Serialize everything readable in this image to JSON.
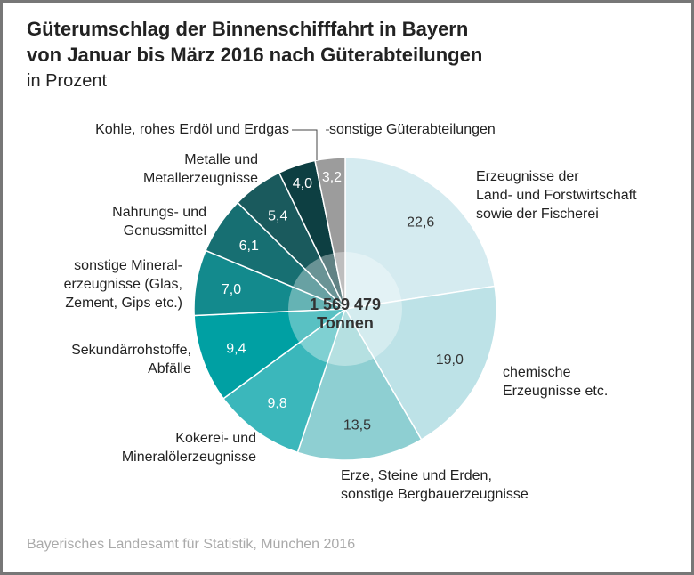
{
  "chart_data": {
    "type": "donut",
    "title": [
      "Güterumschlag der Binnenschifffahrt in Bayern",
      "von Januar bis März 2016 nach Güterabteilungen"
    ],
    "subtitle": "in Prozent",
    "center_label": [
      "1 569 479",
      "Tonnen"
    ],
    "source": "Bayerisches Landesamt für Statistik, München 2016",
    "categories": [
      [
        "Erzeugnisse der",
        "Land- und Forstwirtschaft",
        "sowie der Fischerei"
      ],
      [
        "chemische",
        "Erzeugnisse etc."
      ],
      [
        "Erze, Steine und Erden,",
        "sonstige Bergbauerzeugnisse"
      ],
      [
        "Kokerei- und",
        "Mineralölerzeugnisse"
      ],
      [
        "Sekundärrohstoffe,",
        "Abfälle"
      ],
      [
        "sonstige Mineral-",
        "erzeugnisse (Glas,",
        "Zement, Gips etc.)"
      ],
      [
        "Nahrungs- und",
        "Genussmittel"
      ],
      [
        "Metalle und",
        "Metallerzeugnisse"
      ],
      [
        "Kohle, rohes Erdöl und Erdgas"
      ],
      [
        "sonstige Güterabteilungen"
      ]
    ],
    "values": [
      22.6,
      19.0,
      13.5,
      9.8,
      9.4,
      7.0,
      6.1,
      5.4,
      4.0,
      3.2
    ],
    "value_labels": [
      "22,6",
      "19,0",
      "13,5",
      "9,8",
      "9,4",
      "7,0",
      "6,1",
      "5,4",
      "4,0",
      "3,2"
    ],
    "colors": [
      "#d5ebf0",
      "#bde2e7",
      "#8ecfd2",
      "#3bb7bb",
      "#00a0a3",
      "#138a8d",
      "#176f72",
      "#1a5a5d",
      "#0d3f42",
      "#9c9c9c"
    ]
  }
}
